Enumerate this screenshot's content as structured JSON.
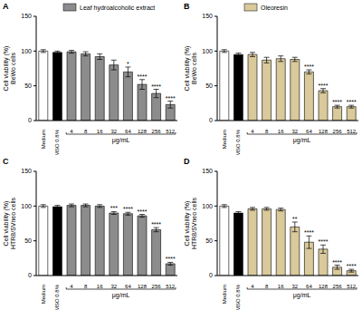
{
  "chart_data": [
    {
      "type": "bar",
      "title": "A",
      "y_label": [
        "Cell viability (%)",
        "BeWo cells"
      ],
      "x_label": "μg/mL",
      "legend": "top",
      "categories": [
        "Medium",
        "DMSO 0.8%",
        "4",
        "8",
        "16",
        "32",
        "64",
        "128",
        "256",
        "512"
      ],
      "ylim": [
        0,
        150
      ],
      "yticks": [
        0,
        50,
        100,
        150
      ],
      "grid": false,
      "series": [
        {
          "name": "Leaf hydroalcoholic extract",
          "color": "#8c8c8c",
          "colors": [
            "#ffffff",
            "#000000",
            "#8c8c8c",
            "#8c8c8c",
            "#8c8c8c",
            "#8c8c8c",
            "#8c8c8c",
            "#8c8c8c",
            "#8c8c8c",
            "#8c8c8c"
          ],
          "values": [
            100,
            98,
            99,
            96,
            92,
            80,
            70,
            52,
            39,
            23
          ],
          "errors": [
            2,
            2,
            2,
            3,
            4,
            7,
            7,
            7,
            6,
            5
          ],
          "annotations": [
            null,
            null,
            null,
            null,
            null,
            null,
            "*",
            "****",
            "****",
            "****"
          ]
        }
      ]
    },
    {
      "type": "bar",
      "title": "B",
      "y_label": [
        "Cell viability (%)",
        "BeWo cells"
      ],
      "x_label": "μg/mL",
      "legend": "top",
      "categories": [
        "Medium",
        "DMSO 0.8%",
        "4",
        "8",
        "16",
        "32",
        "64",
        "128",
        "256",
        "512"
      ],
      "ylim": [
        0,
        150
      ],
      "yticks": [
        0,
        50,
        100,
        150
      ],
      "grid": false,
      "series": [
        {
          "name": "Oleoresin",
          "color": "#d9c99b",
          "colors": [
            "#ffffff",
            "#000000",
            "#d9c99b",
            "#d9c99b",
            "#d9c99b",
            "#d9c99b",
            "#d9c99b",
            "#d9c99b",
            "#d9c99b",
            "#d9c99b"
          ],
          "values": [
            100,
            95,
            95,
            87,
            89,
            88,
            70,
            43,
            20,
            20
          ],
          "errors": [
            2,
            2,
            3,
            4,
            4,
            3,
            3,
            3,
            2,
            2
          ],
          "annotations": [
            null,
            null,
            null,
            null,
            null,
            null,
            "****",
            "****",
            "****",
            "****"
          ]
        }
      ]
    },
    {
      "type": "bar",
      "title": "C",
      "y_label": [
        "Cell viability (%)",
        "HTR8/SVneo cells"
      ],
      "x_label": "μg/mL",
      "categories": [
        "Medium",
        "DMSO 0.8%",
        "4",
        "8",
        "16",
        "32",
        "64",
        "128",
        "256",
        "512"
      ],
      "ylim": [
        0,
        150
      ],
      "yticks": [
        0,
        50,
        100,
        150
      ],
      "grid": false,
      "series": [
        {
          "color": "#8c8c8c",
          "colors": [
            "#ffffff",
            "#000000",
            "#8c8c8c",
            "#8c8c8c",
            "#8c8c8c",
            "#8c8c8c",
            "#8c8c8c",
            "#8c8c8c",
            "#8c8c8c",
            "#8c8c8c"
          ],
          "values": [
            100,
            99,
            101,
            101,
            100,
            90,
            89,
            86,
            66,
            17
          ],
          "errors": [
            2,
            2,
            2,
            2,
            2,
            2,
            2,
            2,
            3,
            2
          ],
          "annotations": [
            null,
            null,
            null,
            null,
            null,
            "***",
            "****",
            "****",
            "****",
            "****"
          ]
        }
      ]
    },
    {
      "type": "bar",
      "title": "D",
      "y_label": [
        "Cell viability (%)",
        "HTR8/SVneo cells"
      ],
      "x_label": "μg/mL",
      "categories": [
        "Medium",
        "DMSO 0.8%",
        "4",
        "8",
        "16",
        "32",
        "64",
        "128",
        "256",
        "512"
      ],
      "ylim": [
        0,
        150
      ],
      "yticks": [
        0,
        50,
        100,
        150
      ],
      "grid": false,
      "series": [
        {
          "color": "#d9c99b",
          "colors": [
            "#ffffff",
            "#000000",
            "#d9c99b",
            "#d9c99b",
            "#d9c99b",
            "#d9c99b",
            "#d9c99b",
            "#d9c99b",
            "#d9c99b",
            "#d9c99b"
          ],
          "values": [
            100,
            90,
            96,
            96,
            95,
            70,
            48,
            38,
            12,
            7
          ],
          "errors": [
            2,
            2,
            2,
            2,
            2,
            7,
            9,
            6,
            3,
            2
          ],
          "annotations": [
            null,
            null,
            null,
            null,
            null,
            "**",
            "****",
            "****",
            "****",
            "****"
          ]
        }
      ]
    }
  ]
}
